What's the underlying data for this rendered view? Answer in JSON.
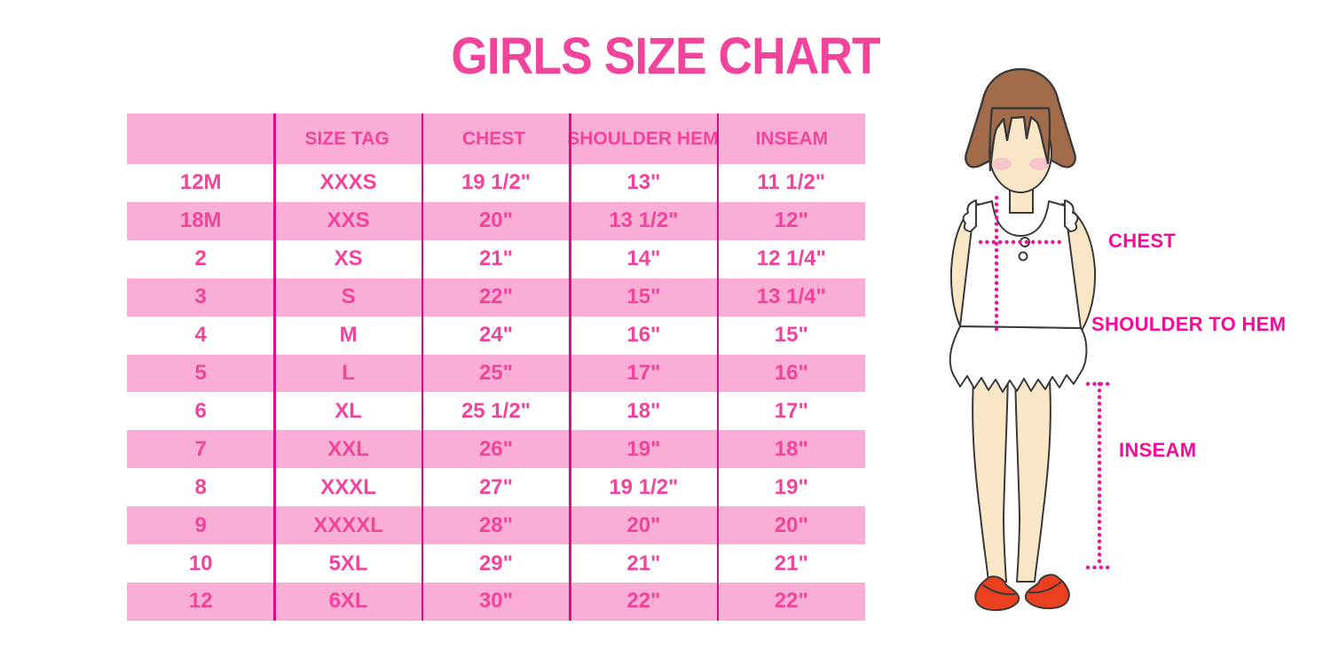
{
  "title": "GIRLS SIZE CHART",
  "chart_data": {
    "type": "table",
    "title": "GIRLS SIZE CHART",
    "headers": [
      "",
      "SIZE TAG",
      "CHEST",
      "SHOULDER HEM",
      "INSEAM"
    ],
    "rows": [
      [
        "12M",
        "XXXS",
        "19 1/2\"",
        "13\"",
        "11 1/2\""
      ],
      [
        "18M",
        "XXS",
        "20\"",
        "13 1/2\"",
        "12\""
      ],
      [
        "2",
        "XS",
        "21\"",
        "14\"",
        "12 1/4\""
      ],
      [
        "3",
        "S",
        "22\"",
        "15\"",
        "13 1/4\""
      ],
      [
        "4",
        "M",
        "24\"",
        "16\"",
        "15\""
      ],
      [
        "5",
        "L",
        "25\"",
        "17\"",
        "16\""
      ],
      [
        "6",
        "XL",
        "25 1/2\"",
        "18\"",
        "17\""
      ],
      [
        "7",
        "XXL",
        "26\"",
        "19\"",
        "18\""
      ],
      [
        "8",
        "XXXL",
        "27\"",
        "19 1/2\"",
        "19\""
      ],
      [
        "9",
        "XXXXL",
        "28\"",
        "20\"",
        "20\""
      ],
      [
        "10",
        "5XL",
        "29\"",
        "21\"",
        "21\""
      ],
      [
        "12",
        "6XL",
        "30\"",
        "22\"",
        "22\""
      ]
    ]
  },
  "figure": {
    "labels": {
      "chest": "CHEST",
      "shoulder_hem": "SHOULDER TO HEM",
      "inseam": "INSEAM"
    }
  },
  "colors": {
    "accent": "#F2449D",
    "label": "#F20D9B",
    "pink": "#FBAED5",
    "divider": "#DE0C86",
    "hair": "#A26C4B",
    "skin": "#FAE7C8",
    "blush": "#F3B8CB",
    "shoe": "#EA4020",
    "cloth": "#FFFFFF",
    "outline": "#3A3A3A"
  }
}
